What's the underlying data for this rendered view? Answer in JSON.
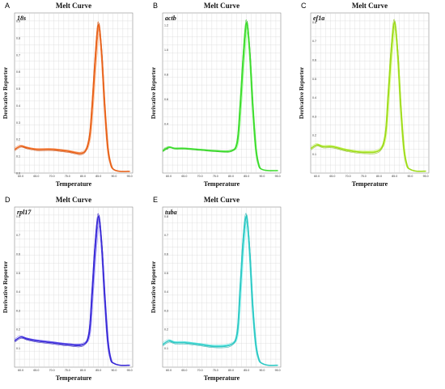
{
  "panels": [
    {
      "letter": "A",
      "gene": "18s",
      "title": "Melt Curve",
      "xlabel": "Temperature",
      "ylabel": "Derivative Reporter",
      "color": "#e8621a",
      "xticks": [
        "60.0",
        "65.0",
        "70.0",
        "75.0",
        "80.0",
        "85.0",
        "90.0",
        "95.0"
      ],
      "yticks": [
        "0.0",
        "0.1",
        "0.2",
        "0.3",
        "0.4",
        "0.5",
        "0.6",
        "0.7",
        "0.8",
        "0.9"
      ]
    },
    {
      "letter": "B",
      "gene": "actb",
      "title": "Melt Curve",
      "xlabel": "Temperature",
      "ylabel": "Derivative Reporter",
      "color": "#3ddc2e",
      "xticks": [
        "60.0",
        "65.0",
        "70.0",
        "75.0",
        "80.0",
        "85.0",
        "90.0",
        "95.0"
      ],
      "yticks": [
        "0.2",
        "0.4",
        "0.6",
        "0.8",
        "1.0",
        "1.2"
      ]
    },
    {
      "letter": "C",
      "gene": "ef1a",
      "title": "Melt Curve",
      "xlabel": "Temperature",
      "ylabel": "Derivative Reporter",
      "color": "#9fdc1c",
      "xticks": [
        "60.0",
        "65.0",
        "70.0",
        "75.0",
        "80.0",
        "85.0",
        "90.0",
        "95.0"
      ],
      "yticks": [
        "0.1",
        "0.2",
        "0.3",
        "0.4",
        "0.5",
        "0.6",
        "0.7",
        "0.8"
      ]
    },
    {
      "letter": "D",
      "gene": "rpl17",
      "title": "Melt Curve",
      "xlabel": "Temperature",
      "ylabel": "Derivative Reporter",
      "color": "#3a2ad6",
      "xticks": [
        "60.0",
        "65.0",
        "70.0",
        "75.0",
        "80.0",
        "85.0",
        "90.0",
        "95.0"
      ],
      "yticks": [
        "0.1",
        "0.2",
        "0.3",
        "0.4",
        "0.5",
        "0.6",
        "0.7",
        "0.8"
      ]
    },
    {
      "letter": "E",
      "gene": "tuba",
      "title": "Melt Curve",
      "xlabel": "Temperature",
      "ylabel": "Derivative Reporter",
      "color": "#2ec9c4",
      "xticks": [
        "60.0",
        "65.0",
        "70.0",
        "75.0",
        "80.0",
        "85.0",
        "90.0",
        "95.0"
      ],
      "yticks": [
        "0.1",
        "0.2",
        "0.3",
        "0.4",
        "0.5",
        "0.6",
        "0.7",
        "0.8"
      ]
    }
  ],
  "chart_data": [
    {
      "type": "line",
      "title": "Melt Curve",
      "xlabel": "Temperature",
      "ylabel": "Derivative Reporter",
      "xlim": [
        58,
        96
      ],
      "ylim": [
        0.0,
        0.95
      ],
      "series": [
        {
          "name": "",
          "x": [
            58,
            60,
            62,
            65,
            70,
            75,
            80,
            82,
            83,
            84,
            85,
            86,
            87,
            88,
            89,
            90,
            92,
            95
          ],
          "y": [
            0.14,
            0.16,
            0.15,
            0.14,
            0.14,
            0.13,
            0.12,
            0.2,
            0.4,
            0.68,
            0.88,
            0.72,
            0.4,
            0.15,
            0.05,
            0.02,
            0.01,
            0.01
          ]
        }
      ]
    },
    {
      "type": "line",
      "title": "Melt Curve",
      "xlabel": "Temperature",
      "ylabel": "Derivative Reporter",
      "xlim": [
        58,
        96
      ],
      "ylim": [
        0.0,
        1.3
      ],
      "series": [
        {
          "name": "",
          "x": [
            58,
            60,
            62,
            65,
            70,
            75,
            80,
            82,
            83,
            84,
            85,
            86,
            87,
            88,
            89,
            90,
            92,
            95
          ],
          "y": [
            0.18,
            0.21,
            0.2,
            0.2,
            0.19,
            0.18,
            0.18,
            0.25,
            0.55,
            0.95,
            1.22,
            1.0,
            0.55,
            0.2,
            0.06,
            0.03,
            0.02,
            0.02
          ]
        }
      ]
    },
    {
      "type": "line",
      "title": "Melt Curve",
      "xlabel": "Temperature",
      "ylabel": "Derivative Reporter",
      "xlim": [
        58,
        96
      ],
      "ylim": [
        0.0,
        0.85
      ],
      "series": [
        {
          "name": "",
          "x": [
            58,
            60,
            62,
            65,
            70,
            75,
            80,
            82,
            83,
            84,
            85,
            86,
            87,
            88,
            89,
            90,
            92,
            95
          ],
          "y": [
            0.13,
            0.15,
            0.14,
            0.14,
            0.12,
            0.11,
            0.12,
            0.2,
            0.42,
            0.66,
            0.8,
            0.64,
            0.35,
            0.13,
            0.04,
            0.02,
            0.01,
            0.01
          ]
        }
      ]
    },
    {
      "type": "line",
      "title": "Melt Curve",
      "xlabel": "Temperature",
      "ylabel": "Derivative Reporter",
      "xlim": [
        58,
        96
      ],
      "ylim": [
        0.0,
        0.85
      ],
      "series": [
        {
          "name": "",
          "x": [
            58,
            60,
            62,
            65,
            70,
            75,
            80,
            82,
            83,
            84,
            85,
            86,
            87,
            88,
            89,
            90,
            92,
            95
          ],
          "y": [
            0.14,
            0.16,
            0.15,
            0.14,
            0.13,
            0.12,
            0.12,
            0.18,
            0.4,
            0.65,
            0.8,
            0.66,
            0.38,
            0.14,
            0.04,
            0.02,
            0.01,
            0.01
          ]
        }
      ]
    },
    {
      "type": "line",
      "title": "Melt Curve",
      "xlabel": "Temperature",
      "ylabel": "Derivative Reporter",
      "xlim": [
        58,
        96
      ],
      "ylim": [
        0.0,
        0.85
      ],
      "series": [
        {
          "name": "",
          "x": [
            58,
            60,
            62,
            65,
            70,
            75,
            80,
            82,
            83,
            84,
            85,
            86,
            87,
            88,
            89,
            90,
            92,
            95
          ],
          "y": [
            0.12,
            0.14,
            0.13,
            0.13,
            0.12,
            0.11,
            0.12,
            0.18,
            0.42,
            0.68,
            0.8,
            0.62,
            0.32,
            0.12,
            0.04,
            0.02,
            0.01,
            0.01
          ]
        }
      ]
    }
  ]
}
